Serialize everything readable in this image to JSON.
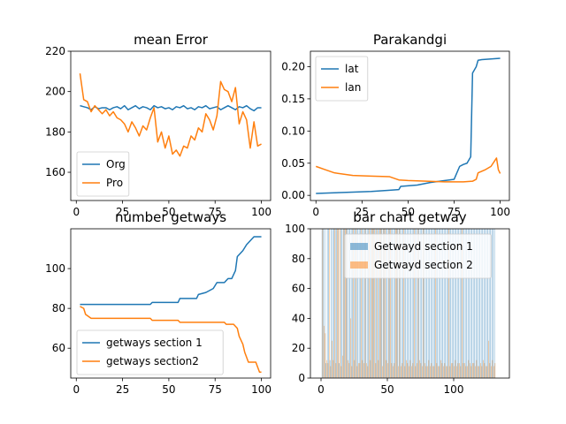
{
  "chart_data": [
    {
      "type": "line",
      "title": "mean Error",
      "xlabel": "",
      "ylabel": "",
      "xlim": [
        -3,
        105
      ],
      "ylim": [
        146,
        220
      ],
      "xticks": [
        0,
        25,
        50,
        75,
        100
      ],
      "yticks": [
        160,
        180,
        200,
        220
      ],
      "legend": "lower-left",
      "series": [
        {
          "name": "Org",
          "color": "#1f77b4",
          "x": [
            2,
            4,
            6,
            8,
            10,
            12,
            14,
            16,
            18,
            20,
            22,
            24,
            26,
            28,
            30,
            32,
            34,
            36,
            38,
            40,
            42,
            44,
            46,
            48,
            50,
            52,
            54,
            56,
            58,
            60,
            62,
            64,
            66,
            68,
            70,
            72,
            74,
            76,
            78,
            80,
            82,
            84,
            86,
            88,
            90,
            92,
            94,
            96,
            98,
            100
          ],
          "y": [
            193,
            192.5,
            192,
            191,
            192.5,
            191.5,
            192,
            192,
            191,
            192,
            192.5,
            191.5,
            193,
            191,
            192,
            193,
            191.5,
            192.5,
            192,
            191,
            193,
            192,
            192.5,
            191.5,
            192,
            191,
            192.5,
            192,
            193,
            191.5,
            192,
            191,
            192.5,
            192,
            193,
            191.5,
            192,
            192.5,
            191,
            192,
            193,
            192,
            191,
            192.5,
            192,
            193,
            191.5,
            190.5,
            192,
            192
          ]
        },
        {
          "name": "Pro",
          "color": "#ff7f0e",
          "x": [
            2,
            4,
            6,
            8,
            10,
            12,
            14,
            16,
            18,
            20,
            22,
            24,
            26,
            28,
            30,
            32,
            34,
            36,
            38,
            40,
            42,
            44,
            46,
            48,
            50,
            52,
            54,
            56,
            58,
            60,
            62,
            64,
            66,
            68,
            70,
            72,
            74,
            76,
            78,
            80,
            82,
            84,
            86,
            88,
            90,
            92,
            94,
            96,
            98,
            100
          ],
          "y": [
            209,
            196,
            195,
            190,
            193,
            191,
            189,
            191,
            188,
            190,
            187,
            186,
            184,
            180,
            185,
            182,
            178,
            183,
            181,
            187,
            192,
            175,
            180,
            172,
            178,
            169,
            171,
            168,
            173,
            172,
            178,
            176,
            182,
            180,
            189,
            186,
            181,
            188,
            205,
            201,
            200,
            195,
            202,
            184,
            190,
            186,
            172,
            185,
            173,
            174
          ]
        }
      ]
    },
    {
      "type": "line",
      "title": "Parakandgi",
      "xlabel": "",
      "ylabel": "",
      "xlim": [
        -3,
        105
      ],
      "ylim": [
        -0.008,
        0.224
      ],
      "xticks": [
        0,
        25,
        50,
        75,
        100
      ],
      "yticks": [
        0.0,
        0.05,
        0.1,
        0.15,
        0.2
      ],
      "ytick_labels": [
        "0.00",
        "0.05",
        "0.10",
        "0.15",
        "0.20"
      ],
      "legend": "upper-left",
      "series": [
        {
          "name": "lat",
          "color": "#1f77b4",
          "x": [
            0,
            10,
            20,
            30,
            40,
            45,
            46,
            55,
            62,
            70,
            75,
            78,
            80,
            82,
            84,
            85,
            86,
            87,
            88,
            90,
            95,
            100
          ],
          "y": [
            0.003,
            0.004,
            0.005,
            0.006,
            0.008,
            0.009,
            0.014,
            0.016,
            0.02,
            0.023,
            0.025,
            0.045,
            0.048,
            0.05,
            0.06,
            0.19,
            0.195,
            0.2,
            0.21,
            0.211,
            0.212,
            0.213
          ]
        },
        {
          "name": "lan",
          "color": "#ff7f0e",
          "x": [
            0,
            5,
            10,
            20,
            30,
            40,
            45,
            50,
            60,
            70,
            80,
            85,
            87,
            88,
            92,
            95,
            98,
            99,
            100
          ],
          "y": [
            0.045,
            0.04,
            0.035,
            0.031,
            0.03,
            0.029,
            0.024,
            0.023,
            0.022,
            0.021,
            0.021,
            0.022,
            0.025,
            0.035,
            0.04,
            0.045,
            0.058,
            0.04,
            0.034
          ]
        }
      ]
    },
    {
      "type": "line",
      "title": "number getways",
      "xlabel": "",
      "ylabel": "",
      "xlim": [
        -3,
        105
      ],
      "ylim": [
        45,
        120
      ],
      "xticks": [
        0,
        25,
        50,
        75,
        100
      ],
      "yticks": [
        60,
        80,
        100
      ],
      "legend": "lower-left",
      "series": [
        {
          "name": "getways section 1",
          "color": "#1f77b4",
          "x": [
            2,
            10,
            20,
            30,
            40,
            41,
            55,
            56,
            65,
            66,
            70,
            72,
            74,
            76,
            78,
            80,
            82,
            84,
            86,
            87,
            88,
            90,
            92,
            94,
            96,
            98,
            100
          ],
          "y": [
            82,
            82,
            82,
            82,
            82,
            83,
            83,
            85,
            85,
            87,
            88,
            89,
            90,
            93,
            93,
            93,
            95,
            95,
            99,
            106,
            107,
            109,
            112,
            114,
            116,
            116,
            116
          ]
        },
        {
          "name": "getways section2",
          "color": "#ff7f0e",
          "x": [
            2,
            4,
            5,
            8,
            20,
            35,
            40,
            41,
            55,
            56,
            80,
            81,
            85,
            87,
            88,
            90,
            91,
            93,
            95,
            97,
            99,
            100
          ],
          "y": [
            81,
            80,
            77,
            75,
            75,
            75,
            75,
            74,
            74,
            73,
            73,
            72,
            72,
            70,
            66,
            62,
            58,
            53,
            53,
            53,
            48,
            48
          ]
        }
      ]
    },
    {
      "type": "bar",
      "title": "bar chart getway",
      "xlabel": "",
      "ylabel": "",
      "xlim": [
        -8,
        142
      ],
      "ylim": [
        0,
        100
      ],
      "xticks": [
        0,
        50,
        100
      ],
      "yticks": [
        0,
        20,
        40,
        60,
        80,
        100
      ],
      "legend": "upper-right",
      "series": [
        {
          "name": "Getwayd section 1",
          "color": "#1f77b4",
          "x": [
            1,
            2,
            3,
            4,
            5,
            6,
            7,
            8,
            9,
            10,
            11,
            12,
            13,
            14,
            15,
            16,
            17,
            18,
            19,
            20,
            21,
            22,
            23,
            24,
            25,
            26,
            27,
            28,
            29,
            30,
            31,
            32,
            33,
            34,
            35,
            36,
            37,
            38,
            39,
            40,
            41,
            42,
            43,
            44,
            45,
            46,
            47,
            48,
            49,
            50,
            51,
            52,
            53,
            54,
            55,
            56,
            57,
            58,
            59,
            60,
            61,
            62,
            63,
            64,
            65,
            66,
            67,
            68,
            69,
            70,
            71,
            72,
            73,
            74,
            75,
            76,
            77,
            78,
            79,
            80,
            81,
            82,
            83,
            84,
            85,
            86,
            87,
            88,
            89,
            90,
            91,
            92,
            93,
            94,
            95,
            96,
            97,
            98,
            99,
            100,
            101,
            102,
            103,
            104,
            105,
            106,
            107,
            108,
            109,
            110,
            111,
            112,
            113,
            114,
            115,
            116,
            117,
            118,
            119,
            120,
            121,
            122,
            123,
            124,
            125,
            126,
            127,
            128,
            129,
            130,
            131
          ],
          "values": [
            100,
            100,
            100,
            10,
            100,
            100,
            12,
            100,
            100,
            100,
            100,
            100,
            100,
            10,
            100,
            100,
            100,
            100,
            100,
            100,
            100,
            100,
            100,
            100,
            100,
            100,
            100,
            100,
            100,
            100,
            100,
            100,
            100,
            100,
            100,
            100,
            100,
            100,
            100,
            100,
            100,
            100,
            100,
            100,
            100,
            100,
            100,
            100,
            100,
            100,
            100,
            100,
            100,
            100,
            100,
            100,
            100,
            100,
            100,
            100,
            100,
            100,
            100,
            100,
            100,
            100,
            100,
            100,
            100,
            100,
            100,
            100,
            100,
            100,
            100,
            100,
            100,
            100,
            100,
            100,
            100,
            100,
            100,
            100,
            100,
            100,
            100,
            100,
            100,
            100,
            100,
            100,
            100,
            100,
            100,
            100,
            100,
            100,
            100,
            100,
            100,
            100,
            100,
            100,
            100,
            100,
            100,
            100,
            100,
            100,
            100,
            100,
            100,
            100,
            100,
            100,
            100,
            100,
            100,
            100,
            100,
            100,
            100,
            100,
            100,
            100,
            100,
            100,
            100,
            100,
            100
          ]
        },
        {
          "name": "Getwayd section 2",
          "color": "#ff7f0e",
          "x": [
            1,
            2,
            3,
            4,
            5,
            6,
            7,
            8,
            9,
            10,
            11,
            12,
            13,
            14,
            15,
            16,
            17,
            18,
            19,
            20,
            21,
            22,
            23,
            24,
            25,
            26,
            27,
            28,
            29,
            30,
            31,
            32,
            33,
            34,
            35,
            36,
            37,
            38,
            39,
            40,
            41,
            42,
            43,
            44,
            45,
            46,
            47,
            48,
            49,
            50,
            51,
            52,
            53,
            54,
            55,
            56,
            57,
            58,
            59,
            60,
            61,
            62,
            63,
            64,
            65,
            66,
            67,
            68,
            69,
            70,
            71,
            72,
            73,
            74,
            75,
            76,
            77,
            78,
            79,
            80,
            81,
            82,
            83,
            84,
            85,
            86,
            87,
            88,
            89,
            90,
            91,
            92,
            93,
            94,
            95,
            96,
            97,
            98,
            99,
            100,
            101,
            102,
            103,
            104,
            105,
            106,
            107,
            108,
            109,
            110,
            111,
            112,
            113,
            114,
            115,
            116,
            117,
            118,
            119,
            120,
            121,
            122,
            123,
            124,
            125,
            126,
            127,
            128,
            129,
            130,
            131
          ],
          "values": [
            100,
            35,
            30,
            12,
            10,
            100,
            8,
            25,
            12,
            100,
            10,
            100,
            100,
            100,
            8,
            15,
            100,
            100,
            100,
            12,
            10,
            40,
            8,
            100,
            12,
            100,
            8,
            10,
            10,
            100,
            12,
            10,
            100,
            10,
            8,
            100,
            12,
            100,
            100,
            100,
            10,
            100,
            12,
            100,
            100,
            8,
            100,
            100,
            12,
            10,
            100,
            100,
            10,
            8,
            10,
            100,
            100,
            8,
            100,
            8,
            10,
            100,
            8,
            12,
            10,
            8,
            12,
            8,
            10,
            100,
            8,
            10,
            100,
            12,
            10,
            8,
            100,
            10,
            8,
            8,
            12,
            8,
            10,
            8,
            8,
            100,
            10,
            8,
            8,
            12,
            10,
            8,
            10,
            8,
            8,
            100,
            8,
            10,
            10,
            8,
            12,
            8,
            10,
            10,
            8,
            100,
            10,
            10,
            8,
            8,
            12,
            10,
            8,
            10,
            10,
            8,
            12,
            8,
            8,
            10,
            8,
            12,
            10,
            8,
            8,
            25,
            10,
            8,
            12,
            8,
            10
          ]
        }
      ]
    }
  ]
}
